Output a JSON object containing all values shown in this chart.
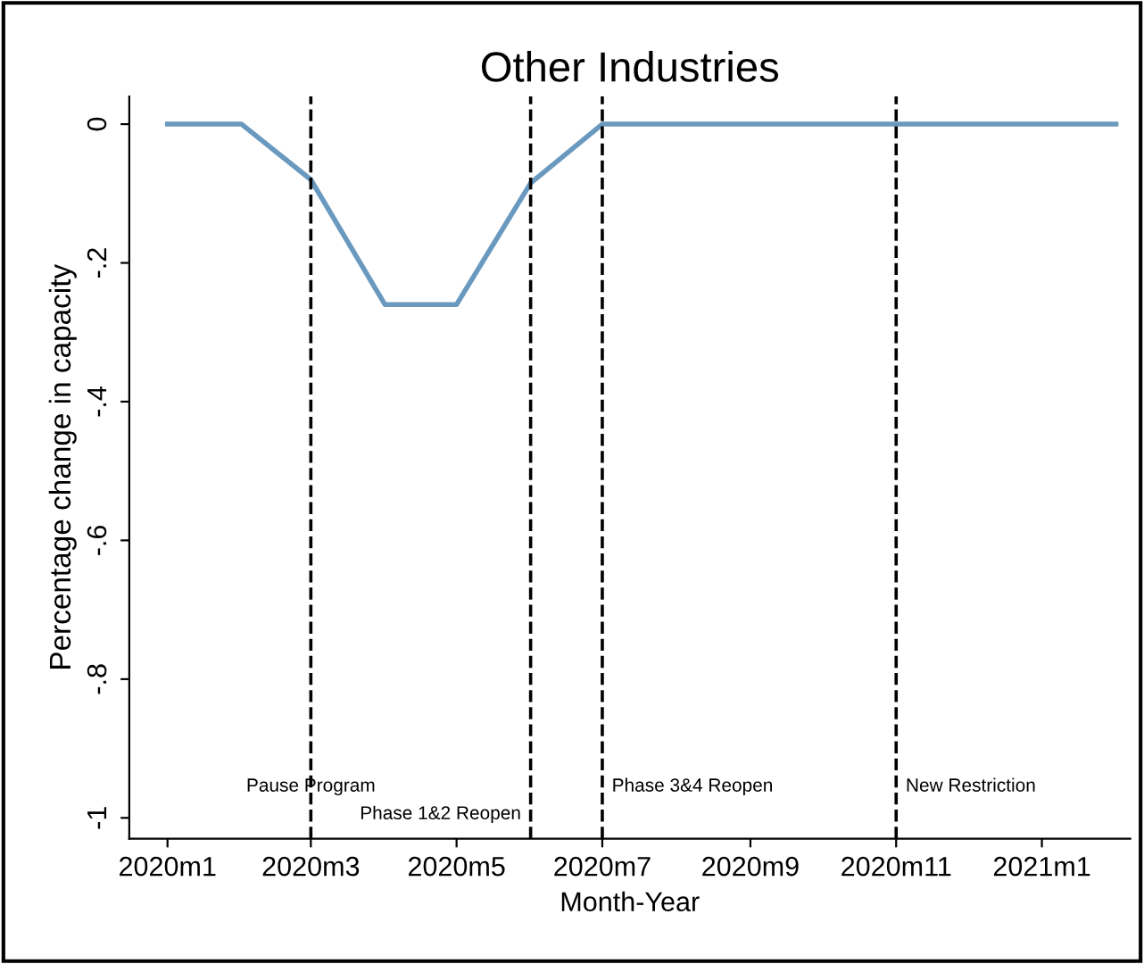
{
  "chart_data": {
    "type": "line",
    "title": "Other Industries",
    "xlabel": "Month-Year",
    "ylabel": "Percentage change in capacity",
    "x": [
      "2020-01",
      "2020-02",
      "2020-03",
      "2020-04",
      "2020-05",
      "2020-06",
      "2020-07",
      "2020-08",
      "2020-09",
      "2020-10",
      "2020-11",
      "2020-12",
      "2021-01",
      "2021-02"
    ],
    "series": [
      {
        "color": "#6a99bf",
        "values": [
          0,
          0,
          -0.08,
          -0.26,
          -0.26,
          -0.085,
          0,
          0,
          0,
          0,
          0,
          0,
          0,
          0
        ]
      }
    ],
    "xlim": [
      "2019-12-16",
      "2021-02-07"
    ],
    "xticks": [
      {
        "value": "2020-01",
        "label": "2020m1"
      },
      {
        "value": "2020-03",
        "label": "2020m3"
      },
      {
        "value": "2020-05",
        "label": "2020m5"
      },
      {
        "value": "2020-07",
        "label": "2020m7"
      },
      {
        "value": "2020-09",
        "label": "2020m9"
      },
      {
        "value": "2020-11",
        "label": "2020m11"
      },
      {
        "value": "2021-01",
        "label": "2021m1"
      }
    ],
    "ylim": [
      -1.03,
      0.04
    ],
    "yticks": [
      {
        "value": 0,
        "label": "0"
      },
      {
        "value": -0.2,
        "label": "-.2"
      },
      {
        "value": -0.4,
        "label": "-.4"
      },
      {
        "value": -0.6,
        "label": "-.6"
      },
      {
        "value": -0.8,
        "label": "-.8"
      },
      {
        "value": -1,
        "label": "-1"
      }
    ],
    "ref_lines": [
      {
        "axis": "x",
        "value": "2020-03",
        "label": "Pause Program",
        "color": "#000000",
        "line_style": "dashed"
      },
      {
        "axis": "x",
        "value": "2020-06",
        "label": "Phase 1&2 Reopen",
        "color": "#000000",
        "line_style": "dashed"
      },
      {
        "axis": "x",
        "value": "2020-07",
        "label": "Phase 3&4 Reopen",
        "color": "#000000",
        "line_style": "dashed"
      },
      {
        "axis": "x",
        "value": "2020-11",
        "label": "New Restriction",
        "color": "#000000",
        "line_style": "dashed"
      }
    ],
    "grid": false,
    "marker": "none",
    "line_style": "solid"
  }
}
